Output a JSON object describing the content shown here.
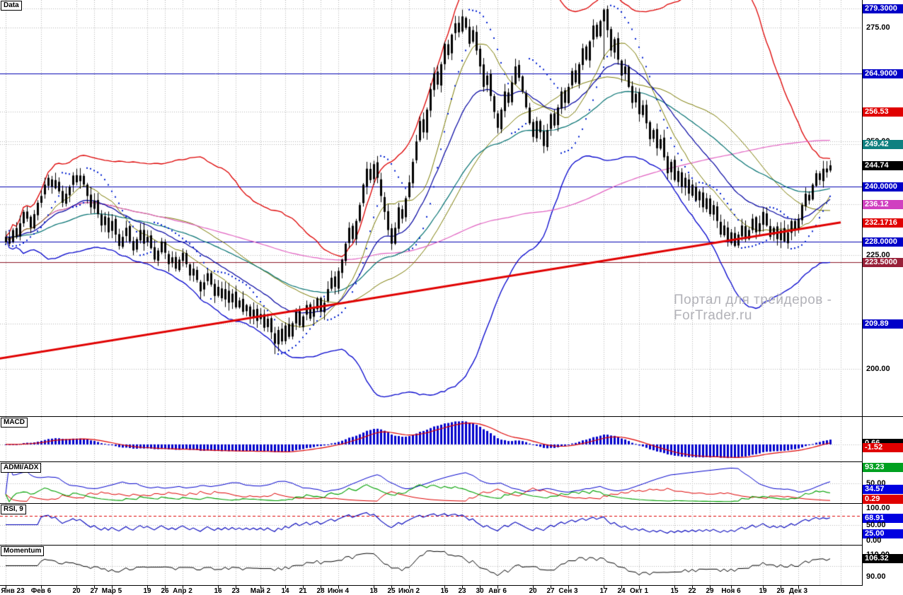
{
  "meta": {
    "watermark": "Портал для трейдеров - ForTrader.ru"
  },
  "colors": {
    "grid": "#b4b4b4",
    "candle": "#000000",
    "bb_upper": "#dd0000",
    "bb_lower": "#0000cc",
    "bb_mid": "#7a7a00",
    "ema_mid": "#0000a0",
    "ema_slow": "#007070",
    "sma_long": "#e060c0",
    "psar": "#0020d0",
    "trend": "#e00000",
    "macd_hist": "#0000cc",
    "macd_signal": "#dd0000",
    "adx_green": "#00a000",
    "adx_red": "#dd0000",
    "adx_blue": "#0000cc",
    "rsi_line": "#0000bb",
    "rsi_level": "#dd0000",
    "mom_line": "#000000"
  },
  "panels": [
    {
      "id": "main",
      "label": "Data",
      "vtop": 280.5,
      "vbot": 190.0,
      "pad_top": 4,
      "pad_bot": 3,
      "grid_values": [
        279.3,
        275,
        256.53,
        250,
        249.42,
        236.12,
        225,
        209.89,
        200
      ],
      "levels": [
        {
          "value": 264.9,
          "color": "#0000b0"
        },
        {
          "value": 240.0,
          "color": "#0000b0"
        },
        {
          "value": 228.0,
          "color": "#0000b0"
        },
        {
          "value": 223.5,
          "color": "#8c1a28"
        }
      ],
      "trendline": {
        "i1": -2,
        "v1": 202.2,
        "i2": 236,
        "v2": 232.17
      },
      "axis": [
        {
          "label": "279.3000",
          "value": 279.3,
          "type": "badge",
          "bg": "#0000c8"
        },
        {
          "label": "275.00",
          "value": 275,
          "type": "tick"
        },
        {
          "label": "264.9000",
          "value": 264.9,
          "type": "badge",
          "bg": "#0000c8"
        },
        {
          "label": "256.53",
          "value": 256.53,
          "type": "badge",
          "bg": "#e00000"
        },
        {
          "label": "250.00",
          "value": 250,
          "type": "tick"
        },
        {
          "label": "249.42",
          "value": 249.42,
          "type": "badge",
          "bg": "#0f8080"
        },
        {
          "label": "244.74",
          "value": 244.74,
          "type": "badge",
          "bg": "#000000"
        },
        {
          "label": "240.0000",
          "value": 240.0,
          "type": "badge",
          "bg": "#0000c8"
        },
        {
          "label": "236.12",
          "value": 236.12,
          "type": "badge",
          "bg": "#d040c0"
        },
        {
          "label": "232.1716",
          "value": 232.17,
          "type": "badge",
          "bg": "#e00000"
        },
        {
          "label": "228.0000",
          "value": 228.0,
          "type": "badge",
          "bg": "#0000c8"
        },
        {
          "label": "225.00",
          "value": 225,
          "type": "tick"
        },
        {
          "label": "223.5000",
          "value": 223.5,
          "type": "badge",
          "bg": "#982038"
        },
        {
          "label": "209.89",
          "value": 209.89,
          "type": "badge",
          "bg": "#0000c8"
        },
        {
          "label": "200.00",
          "value": 200,
          "type": "tick"
        }
      ]
    },
    {
      "id": "macd",
      "label": "MACD",
      "auto": true,
      "grid_values": [
        0
      ],
      "axis": [
        {
          "label": "0.66",
          "value": 0.66,
          "type": "badge",
          "bg": "#000000"
        },
        {
          "label": "-1.52",
          "value": -1.52,
          "type": "badge",
          "bg": "#e00000"
        }
      ]
    },
    {
      "id": "adx",
      "label": "ADMI/ADX",
      "vtop": 100,
      "vbot": 0,
      "grid_values": [
        50
      ],
      "axis": [
        {
          "label": "93.23",
          "value": 93.23,
          "type": "badge",
          "bg": "#00a020"
        },
        {
          "label": "50.00",
          "value": 50,
          "type": "tick"
        },
        {
          "label": "34.57",
          "value": 34.57,
          "type": "badge",
          "bg": "#0000e0"
        },
        {
          "label": "0.29",
          "value": 0.29,
          "type": "badge",
          "bg": "#e00000"
        }
      ]
    },
    {
      "id": "rsi",
      "label": "RSI, 9",
      "vtop": 102,
      "vbot": -2,
      "grid_values": [
        50
      ],
      "levels": [
        {
          "value": 75,
          "color": "#dd0000",
          "dash": [
            4,
            3
          ]
        }
      ],
      "axis": [
        {
          "label": "100.00",
          "value": 100,
          "type": "tick"
        },
        {
          "label": "68.91",
          "value": 68.91,
          "type": "badge",
          "bg": "#0000e0"
        },
        {
          "label": "50.00",
          "value": 50,
          "type": "tick"
        },
        {
          "label": "25.00",
          "value": 25,
          "type": "badge",
          "bg": "#0000e0"
        },
        {
          "label": "0.00",
          "value": 0,
          "type": "tick"
        }
      ]
    },
    {
      "id": "mom",
      "label": "Momentum",
      "vtop": 116,
      "vbot": 84,
      "grid_values": [
        100
      ],
      "axis": [
        {
          "label": "110.00",
          "value": 110,
          "type": "tick"
        },
        {
          "label": "106.32",
          "value": 106.32,
          "type": "badge",
          "bg": "#000000"
        },
        {
          "label": "90.00",
          "value": 90,
          "type": "tick"
        }
      ]
    }
  ],
  "x_axis": {
    "ticks": [
      [
        "Янв 23",
        0
      ],
      [
        "Фев 6",
        10
      ],
      [
        "20",
        20
      ],
      [
        "27",
        25
      ],
      [
        "Мар 5",
        30
      ],
      [
        "19",
        40
      ],
      [
        "26",
        45
      ],
      [
        "Апр 2",
        50
      ],
      [
        "16",
        60
      ],
      [
        "23",
        65
      ],
      [
        "Май 2",
        72
      ],
      [
        "14",
        79
      ],
      [
        "21",
        84
      ],
      [
        "28",
        89
      ],
      [
        "Июн 4",
        94
      ],
      [
        "18",
        104
      ],
      [
        "25",
        109
      ],
      [
        "Июл 2",
        114
      ],
      [
        "16",
        124
      ],
      [
        "23",
        129
      ],
      [
        "30",
        134
      ],
      [
        "Авг 6",
        139
      ],
      [
        "20",
        149
      ],
      [
        "27",
        154
      ],
      [
        "Сен 3",
        159
      ],
      [
        "17",
        169
      ],
      [
        "24",
        174
      ],
      [
        "Окт 1",
        179
      ],
      [
        "15",
        189
      ],
      [
        "22",
        194
      ],
      [
        "29",
        199
      ],
      [
        "Ноя 6",
        205
      ],
      [
        "19",
        214
      ],
      [
        "26",
        219
      ],
      [
        "Дек 3",
        224
      ]
    ],
    "extra_grid_i": [
      230,
      236
    ]
  },
  "chart_data": {
    "type": "candlestick",
    "title": "Data",
    "x_unit": "trading days, Янв 23 — Дек (daily bars)",
    "y_range": [
      190.0,
      280.5
    ],
    "bar_step": 5,
    "first_x": 8,
    "last_close": 244.74,
    "period_high": 279.3,
    "closes": [
      229.0,
      227.5,
      230.5,
      229.0,
      232.0,
      234.5,
      233.0,
      231.0,
      234.0,
      236.5,
      238.0,
      240.5,
      242.0,
      240.0,
      241.5,
      239.0,
      236.5,
      238.5,
      240.0,
      242.5,
      241.0,
      242.5,
      240.5,
      238.0,
      235.5,
      237.0,
      234.0,
      231.5,
      233.5,
      230.0,
      232.5,
      229.5,
      227.0,
      229.0,
      231.0,
      228.0,
      226.0,
      228.5,
      230.5,
      227.5,
      229.0,
      226.5,
      224.0,
      226.0,
      228.0,
      225.5,
      223.0,
      224.5,
      222.0,
      224.0,
      225.5,
      223.0,
      220.5,
      222.0,
      219.5,
      217.0,
      219.0,
      221.0,
      218.5,
      216.0,
      218.0,
      215.5,
      217.5,
      214.5,
      216.5,
      213.5,
      215.0,
      212.5,
      214.0,
      211.5,
      213.0,
      210.5,
      212.0,
      209.0,
      211.0,
      208.0,
      205.5,
      208.5,
      206.0,
      209.5,
      207.0,
      210.0,
      212.5,
      209.5,
      211.5,
      214.0,
      211.0,
      213.5,
      215.5,
      212.5,
      214.5,
      217.5,
      220.0,
      218.0,
      221.5,
      224.0,
      227.5,
      231.0,
      228.5,
      232.5,
      236.0,
      240.5,
      244.0,
      241.5,
      245.0,
      242.0,
      238.0,
      234.5,
      230.5,
      227.5,
      231.0,
      235.5,
      233.0,
      237.5,
      241.0,
      245.5,
      250.0,
      254.5,
      252.0,
      257.0,
      261.5,
      265.0,
      262.5,
      267.0,
      271.5,
      269.0,
      273.5,
      276.0,
      274.0,
      277.5,
      275.0,
      271.5,
      274.5,
      270.0,
      266.5,
      262.0,
      264.5,
      260.0,
      256.5,
      253.0,
      257.0,
      261.0,
      258.5,
      263.0,
      266.5,
      264.0,
      261.0,
      257.5,
      254.0,
      251.0,
      254.5,
      252.0,
      249.0,
      252.5,
      256.0,
      253.5,
      257.5,
      261.0,
      258.5,
      262.0,
      265.5,
      263.0,
      267.0,
      270.5,
      268.0,
      272.0,
      275.5,
      273.0,
      276.5,
      279.0,
      274.5,
      270.0,
      272.5,
      268.0,
      264.5,
      266.5,
      262.0,
      258.5,
      260.5,
      256.0,
      258.0,
      254.0,
      250.5,
      252.5,
      248.5,
      250.5,
      246.5,
      243.0,
      245.5,
      241.5,
      243.5,
      240.0,
      242.0,
      238.5,
      240.5,
      237.0,
      239.0,
      235.5,
      237.5,
      234.0,
      236.0,
      232.5,
      229.5,
      231.5,
      228.0,
      230.0,
      227.0,
      229.5,
      231.5,
      228.5,
      230.5,
      233.0,
      230.0,
      232.0,
      234.5,
      231.5,
      229.0,
      231.0,
      228.5,
      230.5,
      228.0,
      230.0,
      232.5,
      230.5,
      233.0,
      236.0,
      238.5,
      237.0,
      240.5,
      243.0,
      241.5,
      244.0,
      243.2,
      244.74
    ],
    "forced": [
      {
        "i": 169,
        "h": 279.3,
        "l": 268.0
      },
      {
        "i": 76,
        "l": 203.2
      }
    ],
    "indicators": {
      "bollinger": {
        "period": 45,
        "mult": 2.2
      },
      "sma_fast": {
        "period": 13
      },
      "ema_mid": {
        "period": 25
      },
      "ema_slow": {
        "period": 55
      },
      "sma_long": {
        "period": 130
      },
      "psar": {
        "step": 0.02,
        "max": 0.2
      },
      "macd": {
        "fast": 12,
        "slow": 26,
        "signal": 9
      },
      "adx_period": 8,
      "rsi_period": 9,
      "momentum_period": 10
    }
  }
}
